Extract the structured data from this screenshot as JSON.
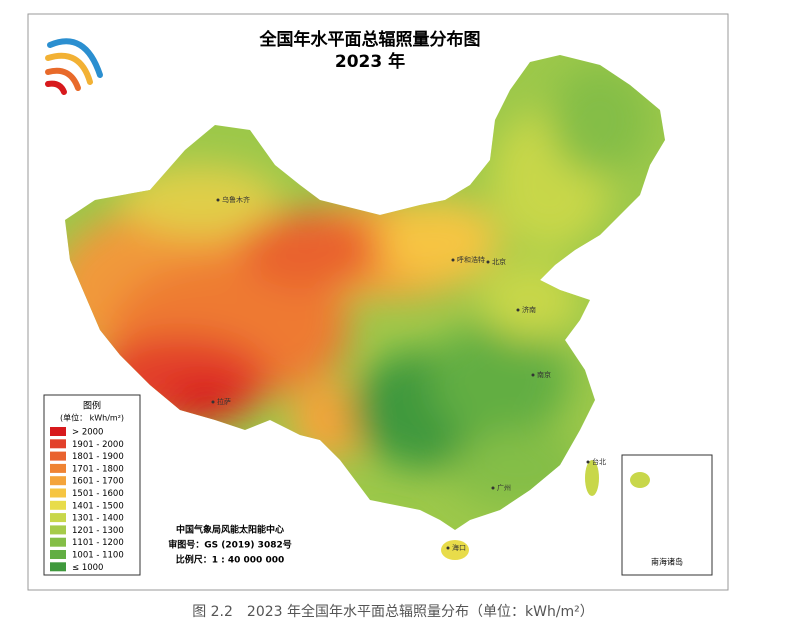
{
  "header": {
    "title": "全国年水平面总辐照量分布图",
    "subtitle": "2023 年"
  },
  "legend": {
    "title": "图例",
    "unit": "(单位： kWh/m²)",
    "items": [
      {
        "label": "> 2000",
        "color": "#d7191c"
      },
      {
        "label": "1901 - 2000",
        "color": "#e2402a"
      },
      {
        "label": "1801 - 1900",
        "color": "#e9622e"
      },
      {
        "label": "1701 - 1800",
        "color": "#ef8333"
      },
      {
        "label": "1601 - 1700",
        "color": "#f4a43a"
      },
      {
        "label": "1501 - 1600",
        "color": "#f6c542"
      },
      {
        "label": "1401 - 1500",
        "color": "#e8dc4a"
      },
      {
        "label": "1301 - 1400",
        "color": "#c8d74a"
      },
      {
        "label": "1201 - 1300",
        "color": "#a6cb4a"
      },
      {
        "label": "1101 - 1200",
        "color": "#84be47"
      },
      {
        "label": "1001 - 1100",
        "color": "#62ae43"
      },
      {
        "label": "≤ 1000",
        "color": "#3f993c"
      }
    ]
  },
  "credits": [
    "中国气象局风能太阳能中心",
    "审图号：GS (2019) 3082号",
    "比例尺：1 : 40 000 000"
  ],
  "places": [
    "乌鲁木齐",
    "拉萨",
    "呼和浩特",
    "北京",
    "济南",
    "南京",
    "广州",
    "台北",
    "海口"
  ],
  "inset": {
    "label": "南海诸岛"
  },
  "caption": "图 2.2　2023 年全国年水平面总辐照量分布（单位：kWh/m²）"
}
